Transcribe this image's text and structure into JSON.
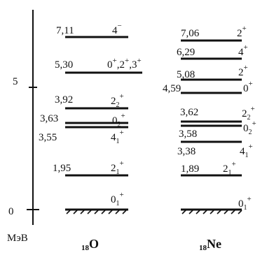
{
  "axis": {
    "unit": "МэВ",
    "ticks": [
      {
        "value": 0,
        "label": "0"
      },
      {
        "value": 5,
        "label": "5"
      }
    ]
  },
  "nuclei": [
    {
      "id": "o18",
      "mass_number": "18",
      "symbol": "O",
      "levels": [
        {
          "energy": 0,
          "energy_label": "",
          "spin": [
            {
              "t": "0",
              "r": "base"
            },
            {
              "t": "1",
              "r": "sub"
            },
            {
              "t": "+",
              "r": "sup"
            }
          ],
          "ground": true
        },
        {
          "energy": 1.95,
          "energy_label": "1,95",
          "spin": [
            {
              "t": "2",
              "r": "base"
            },
            {
              "t": "1",
              "r": "sub"
            },
            {
              "t": "+",
              "r": "sup"
            }
          ]
        },
        {
          "energy": 3.55,
          "energy_label": "3,55",
          "spin": [
            {
              "t": "4",
              "r": "base"
            },
            {
              "t": "1",
              "r": "sub"
            },
            {
              "t": "+",
              "r": "sup"
            }
          ]
        },
        {
          "energy": 3.63,
          "energy_label": "3,63",
          "spin": [
            {
              "t": "0",
              "r": "base"
            },
            {
              "t": "2",
              "r": "sub"
            },
            {
              "t": "+",
              "r": "sup"
            }
          ]
        },
        {
          "energy": 3.92,
          "energy_label": "3,92",
          "spin": [
            {
              "t": "2",
              "r": "base"
            },
            {
              "t": "2",
              "r": "sub"
            },
            {
              "t": "+",
              "r": "sup"
            }
          ]
        },
        {
          "energy": 5.3,
          "energy_label": "5,30",
          "spin": [
            {
              "t": "0",
              "r": "base"
            },
            {
              "t": "+",
              "r": "sup"
            },
            {
              "t": ",2",
              "r": "base"
            },
            {
              "t": "+",
              "r": "sup"
            },
            {
              "t": ",3",
              "r": "base"
            },
            {
              "t": "+",
              "r": "sup"
            }
          ]
        },
        {
          "energy": 7.11,
          "energy_label": "7,11",
          "spin": [
            {
              "t": "4",
              "r": "base"
            },
            {
              "t": "−",
              "r": "sup"
            }
          ]
        }
      ]
    },
    {
      "id": "ne18",
      "mass_number": "18",
      "symbol": "Ne",
      "levels": [
        {
          "energy": 0,
          "energy_label": "",
          "spin": [
            {
              "t": "0",
              "r": "base"
            },
            {
              "t": "1",
              "r": "sub"
            },
            {
              "t": "+",
              "r": "sup"
            }
          ],
          "ground": true
        },
        {
          "energy": 1.89,
          "energy_label": "1,89",
          "spin": [
            {
              "t": "2",
              "r": "base"
            },
            {
              "t": "1",
              "r": "sub"
            },
            {
              "t": "+",
              "r": "sup"
            }
          ]
        },
        {
          "energy": 3.38,
          "energy_label": "3,38",
          "spin": [
            {
              "t": "4",
              "r": "base"
            },
            {
              "t": "1",
              "r": "sub"
            },
            {
              "t": "+",
              "r": "sup"
            }
          ]
        },
        {
          "energy": 3.58,
          "energy_label": "3,58",
          "spin": [
            {
              "t": "0",
              "r": "base"
            },
            {
              "t": "2",
              "r": "sub"
            },
            {
              "t": "+",
              "r": "sup"
            }
          ]
        },
        {
          "energy": 3.62,
          "energy_label": "3,62",
          "spin": [
            {
              "t": "2",
              "r": "base"
            },
            {
              "t": "2",
              "r": "sub"
            },
            {
              "t": "+",
              "r": "sup"
            }
          ]
        },
        {
          "energy": 4.59,
          "energy_label": "4,59",
          "spin": [
            {
              "t": "0",
              "r": "base"
            },
            {
              "t": "+",
              "r": "sup"
            }
          ]
        },
        {
          "energy": 5.08,
          "energy_label": "5,08",
          "spin": [
            {
              "t": "2",
              "r": "base"
            },
            {
              "t": "+",
              "r": "sup"
            }
          ]
        },
        {
          "energy": 6.29,
          "energy_label": "6,29",
          "spin": [
            {
              "t": "4",
              "r": "base"
            },
            {
              "t": "+",
              "r": "sup"
            }
          ]
        },
        {
          "energy": 7.06,
          "energy_label": "7,06",
          "spin": [
            {
              "t": "2",
              "r": "base"
            },
            {
              "t": "+",
              "r": "sup"
            }
          ]
        }
      ]
    }
  ]
}
